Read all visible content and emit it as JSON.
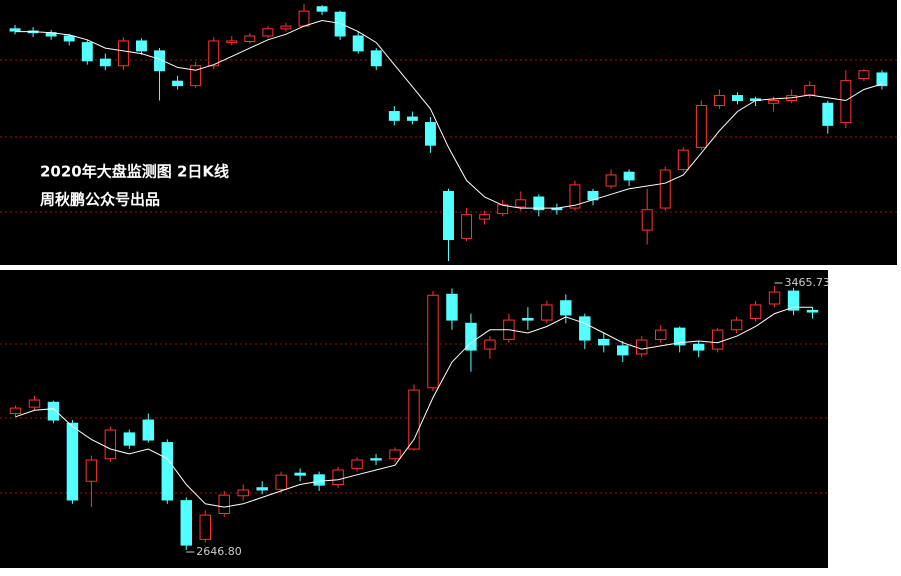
{
  "chart_data": [
    {
      "type": "candlestick",
      "title": "2020年大盘监测图  2日K线",
      "subtitle": "周秋鹏公众号出品",
      "up_color": "#ff3232",
      "down_color": "#54ffff",
      "ma_color": "#ffffff",
      "candles": [
        [
          3085,
          3092,
          3075,
          3081
        ],
        [
          3081,
          3088,
          3070,
          3078
        ],
        [
          3078,
          3083,
          3065,
          3072
        ],
        [
          3072,
          3076,
          3055,
          3063
        ],
        [
          3060,
          3065,
          3020,
          3027
        ],
        [
          3030,
          3040,
          3010,
          3018
        ],
        [
          3018,
          3070,
          3010,
          3063
        ],
        [
          3063,
          3068,
          3038,
          3045
        ],
        [
          3045,
          3050,
          2955,
          3009
        ],
        [
          2990,
          3000,
          2975,
          2982
        ],
        [
          2982,
          3025,
          2978,
          3018
        ],
        [
          3018,
          3070,
          3012,
          3063
        ],
        [
          3060,
          3072,
          3055,
          3063
        ],
        [
          3062,
          3078,
          3058,
          3072
        ],
        [
          3072,
          3090,
          3068,
          3085
        ],
        [
          3085,
          3096,
          3080,
          3090
        ],
        [
          3090,
          3130,
          3088,
          3117
        ],
        [
          3125,
          3128,
          3110,
          3117
        ],
        [
          3115,
          3118,
          3065,
          3072
        ],
        [
          3072,
          3080,
          3040,
          3045
        ],
        [
          3045,
          3050,
          3010,
          3018
        ],
        [
          2935,
          2945,
          2910,
          2919
        ],
        [
          2925,
          2935,
          2912,
          2919
        ],
        [
          2915,
          2925,
          2860,
          2874
        ],
        [
          2790,
          2795,
          2664,
          2703
        ],
        [
          2705,
          2760,
          2700,
          2748
        ],
        [
          2740,
          2755,
          2730,
          2748
        ],
        [
          2750,
          2775,
          2745,
          2766
        ],
        [
          2762,
          2790,
          2755,
          2775
        ],
        [
          2780,
          2785,
          2745,
          2757
        ],
        [
          2760,
          2768,
          2748,
          2757
        ],
        [
          2760,
          2810,
          2755,
          2802
        ],
        [
          2790,
          2795,
          2765,
          2775
        ],
        [
          2800,
          2830,
          2795,
          2820
        ],
        [
          2825,
          2830,
          2800,
          2811
        ],
        [
          2720,
          2795,
          2694,
          2757
        ],
        [
          2760,
          2835,
          2755,
          2829
        ],
        [
          2830,
          2870,
          2825,
          2865
        ],
        [
          2870,
          2955,
          2865,
          2946
        ],
        [
          2946,
          2975,
          2940,
          2964
        ],
        [
          2964,
          2970,
          2948,
          2955
        ],
        [
          2958,
          2962,
          2945,
          2955
        ],
        [
          2950,
          2962,
          2935,
          2955
        ],
        [
          2955,
          2975,
          2950,
          2964
        ],
        [
          2965,
          2990,
          2960,
          2982
        ],
        [
          2950,
          2955,
          2895,
          2910
        ],
        [
          2915,
          3010,
          2905,
          2991
        ],
        [
          2995,
          3012,
          2990,
          3009
        ],
        [
          3005,
          3010,
          2975,
          2982
        ]
      ],
      "ma": [
        3080,
        3080,
        3078,
        3074,
        3065,
        3050,
        3045,
        3040,
        3030,
        3015,
        3010,
        3020,
        3035,
        3050,
        3065,
        3075,
        3090,
        3100,
        3095,
        3080,
        3060,
        3020,
        2980,
        2940,
        2870,
        2810,
        2780,
        2765,
        2760,
        2760,
        2760,
        2765,
        2775,
        2785,
        2795,
        2800,
        2805,
        2820,
        2860,
        2900,
        2935,
        2955,
        2958,
        2960,
        2965,
        2960,
        2955,
        2975,
        2985
      ]
    },
    {
      "type": "candlestick",
      "up_color": "#ff3232",
      "down_color": "#54ffff",
      "ma_color": "#ffffff",
      "candles": [
        [
          3070,
          3095,
          3060,
          3087
        ],
        [
          3090,
          3125,
          3080,
          3112
        ],
        [
          3105,
          3110,
          3040,
          3050
        ],
        [
          3040,
          3050,
          2790,
          2802
        ],
        [
          2860,
          2940,
          2780,
          2926
        ],
        [
          2930,
          3030,
          2920,
          3019
        ],
        [
          3010,
          3020,
          2960,
          2972
        ],
        [
          3050,
          3070,
          2980,
          2988
        ],
        [
          2980,
          2990,
          2790,
          2802
        ],
        [
          2800,
          2810,
          2646.8,
          2662
        ],
        [
          2680,
          2770,
          2670,
          2755
        ],
        [
          2760,
          2830,
          2750,
          2817
        ],
        [
          2815,
          2850,
          2800,
          2833
        ],
        [
          2840,
          2860,
          2820,
          2833
        ],
        [
          2835,
          2890,
          2825,
          2879
        ],
        [
          2885,
          2900,
          2860,
          2879
        ],
        [
          2880,
          2890,
          2830,
          2848
        ],
        [
          2850,
          2905,
          2840,
          2895
        ],
        [
          2900,
          2935,
          2890,
          2926
        ],
        [
          2930,
          2945,
          2910,
          2926
        ],
        [
          2930,
          2965,
          2920,
          2957
        ],
        [
          2960,
          3160,
          2955,
          3143
        ],
        [
          3150,
          3450,
          3140,
          3437
        ],
        [
          3440,
          3458,
          3330,
          3360
        ],
        [
          3350,
          3380,
          3200,
          3267
        ],
        [
          3270,
          3310,
          3240,
          3298
        ],
        [
          3300,
          3380,
          3290,
          3360
        ],
        [
          3365,
          3400,
          3330,
          3360
        ],
        [
          3360,
          3420,
          3350,
          3407
        ],
        [
          3420,
          3440,
          3350,
          3376
        ],
        [
          3370,
          3380,
          3270,
          3298
        ],
        [
          3300,
          3320,
          3260,
          3283
        ],
        [
          3280,
          3295,
          3230,
          3252
        ],
        [
          3255,
          3310,
          3245,
          3298
        ],
        [
          3300,
          3345,
          3290,
          3329
        ],
        [
          3335,
          3340,
          3260,
          3283
        ],
        [
          3285,
          3295,
          3245,
          3267
        ],
        [
          3270,
          3335,
          3260,
          3329
        ],
        [
          3330,
          3370,
          3320,
          3360
        ],
        [
          3365,
          3420,
          3355,
          3407
        ],
        [
          3410,
          3465.73,
          3400,
          3447
        ],
        [
          3450,
          3460,
          3375,
          3391
        ],
        [
          3390,
          3400,
          3365,
          3385
        ]
      ],
      "ma": [
        3060,
        3080,
        3085,
        3030,
        2990,
        2960,
        2945,
        2960,
        2930,
        2850,
        2790,
        2780,
        2790,
        2810,
        2830,
        2850,
        2860,
        2865,
        2880,
        2895,
        2910,
        2990,
        3120,
        3230,
        3290,
        3330,
        3330,
        3320,
        3340,
        3370,
        3350,
        3320,
        3290,
        3270,
        3280,
        3290,
        3295,
        3290,
        3310,
        3340,
        3380,
        3400,
        3400
      ],
      "annotations": [
        {
          "value": 2646.8,
          "label": "2646.80"
        },
        {
          "value": 3465.73,
          "label": "3465.73"
        }
      ]
    }
  ]
}
